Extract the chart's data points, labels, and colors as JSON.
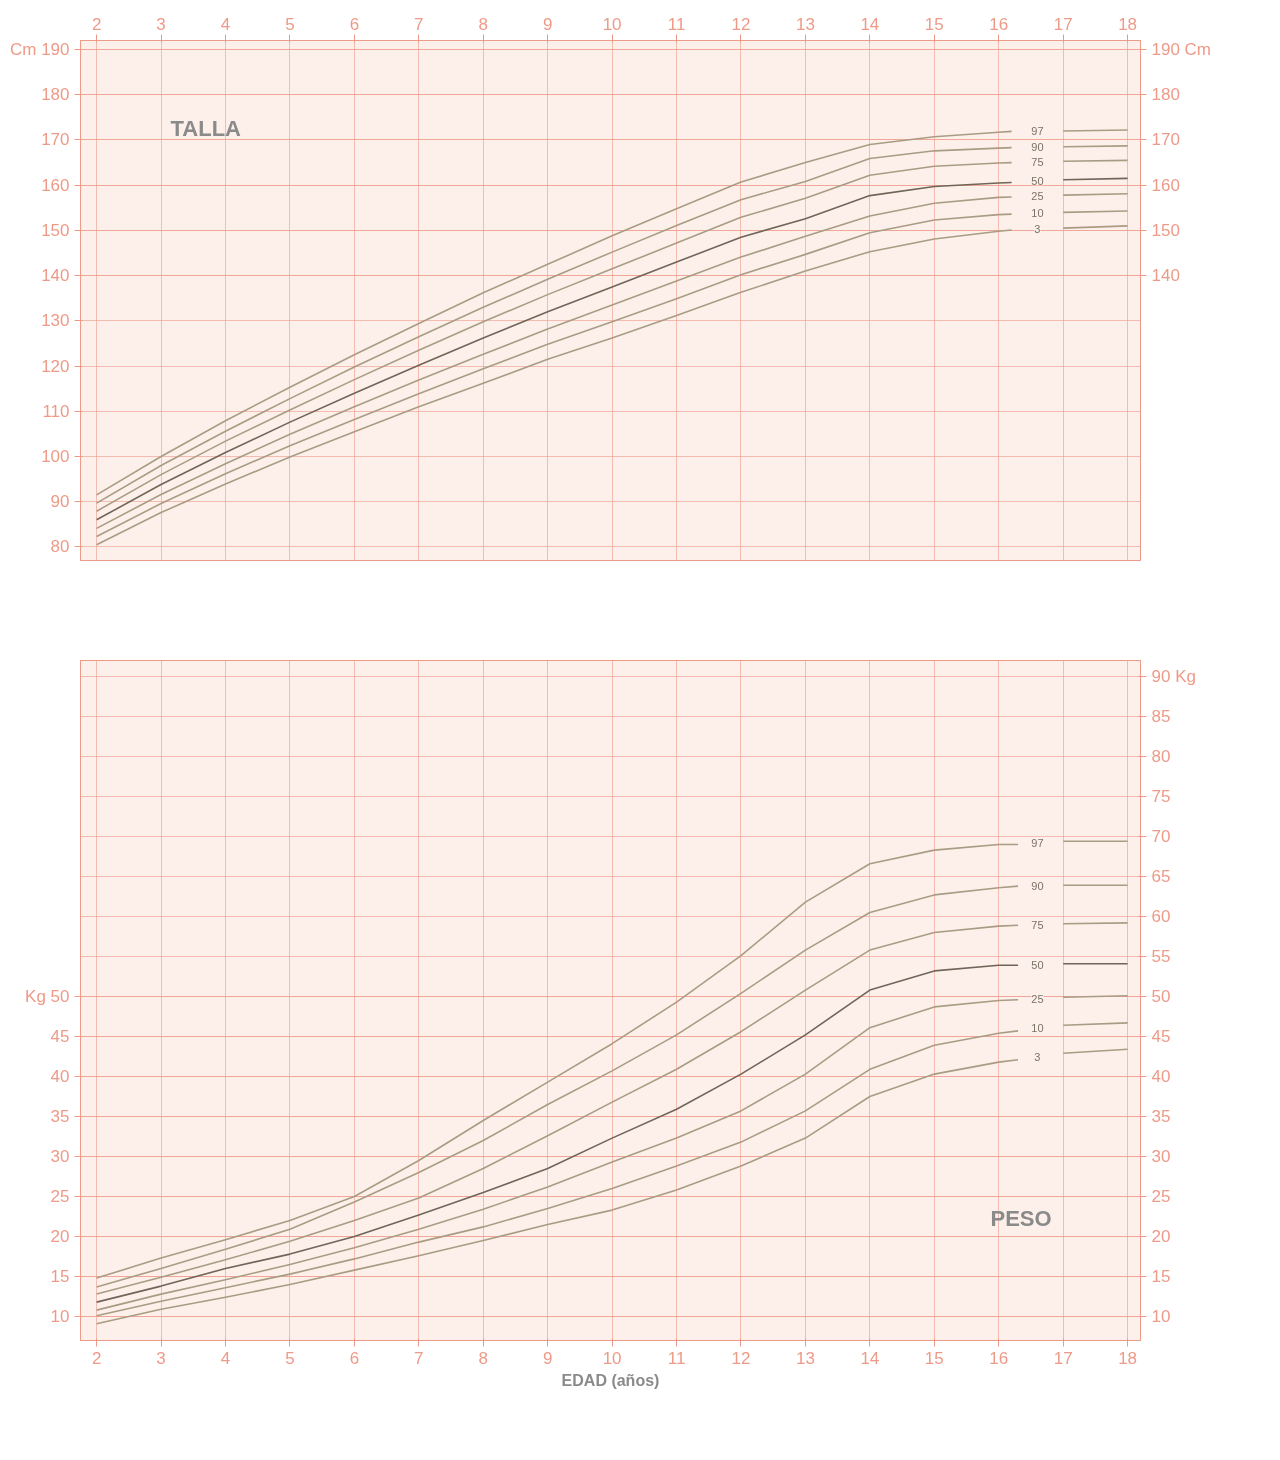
{
  "chart_data": [
    {
      "type": "line",
      "title": "TALLA",
      "grid": true,
      "marker": "none",
      "line_style": "solid",
      "x": [
        2,
        3,
        4,
        5,
        6,
        7,
        8,
        9,
        10,
        11,
        12,
        13,
        14,
        15,
        16,
        16.2,
        16.6,
        17,
        18
      ],
      "xlim": [
        1.75,
        18.2
      ],
      "xticks": [
        2,
        3,
        4,
        5,
        6,
        7,
        8,
        9,
        10,
        11,
        12,
        13,
        14,
        15,
        16,
        17,
        18
      ],
      "ylim": [
        77,
        192
      ],
      "yticks": [
        80,
        90,
        100,
        110,
        120,
        130,
        140,
        150,
        160,
        170,
        180,
        {
          "value": 190,
          "label": "Cm 190"
        }
      ],
      "y2lim": [
        77,
        192
      ],
      "y2ticks": [
        140,
        150,
        160,
        170,
        180,
        {
          "value": 190,
          "label": "190 Cm"
        }
      ],
      "series": [
        {
          "name": "97",
          "color": "#a89c84",
          "values": [
            91.5,
            100.0,
            107.9,
            115.3,
            122.5,
            129.4,
            136.2,
            142.5,
            148.8,
            154.8,
            160.7,
            165.0,
            169.0,
            170.7,
            171.7,
            171.9,
            null,
            172.0,
            172.2
          ]
        },
        {
          "name": "90",
          "color": "#a89c84",
          "values": [
            89.7,
            98.0,
            105.6,
            112.8,
            119.8,
            126.5,
            133.0,
            139.2,
            145.2,
            151.1,
            156.8,
            160.8,
            165.9,
            167.6,
            168.2,
            168.3,
            null,
            168.5,
            168.7
          ]
        },
        {
          "name": "75",
          "color": "#a89c84",
          "values": [
            87.9,
            96.0,
            103.4,
            110.3,
            117.0,
            123.5,
            129.8,
            135.8,
            141.5,
            147.2,
            152.9,
            157.1,
            162.2,
            164.2,
            164.9,
            165.0,
            null,
            165.3,
            165.5
          ]
        },
        {
          "name": "50",
          "color": "#6f6558",
          "values": [
            86.0,
            93.8,
            100.9,
            107.6,
            114.0,
            120.2,
            126.2,
            132.0,
            137.5,
            143.0,
            148.5,
            152.6,
            157.7,
            159.7,
            160.5,
            160.6,
            null,
            161.2,
            161.5
          ]
        },
        {
          "name": "25",
          "color": "#a89c84",
          "values": [
            84.1,
            91.6,
            98.4,
            104.9,
            111.0,
            116.9,
            122.6,
            128.2,
            133.5,
            138.8,
            144.1,
            148.7,
            153.2,
            156.0,
            157.3,
            157.4,
            null,
            157.8,
            158.1
          ]
        },
        {
          "name": "10",
          "color": "#a89c84",
          "values": [
            82.3,
            89.6,
            96.2,
            102.4,
            108.2,
            113.9,
            119.4,
            124.8,
            129.8,
            134.9,
            140.2,
            144.7,
            149.5,
            152.3,
            153.5,
            153.6,
            null,
            154.0,
            154.3
          ]
        },
        {
          "name": "3",
          "color": "#a89c84",
          "values": [
            80.5,
            87.6,
            93.9,
            99.9,
            105.5,
            111.0,
            116.2,
            121.5,
            126.2,
            131.2,
            136.3,
            141.0,
            145.3,
            148.1,
            149.8,
            150.1,
            null,
            150.5,
            151.0
          ]
        }
      ]
    },
    {
      "type": "line",
      "title": "PESO",
      "xlabel": "EDAD (años)",
      "grid": true,
      "marker": "none",
      "line_style": "solid",
      "x": [
        2,
        3,
        4,
        5,
        6,
        7,
        8,
        9,
        10,
        11,
        12,
        13,
        14,
        15,
        16,
        16.3,
        16.6,
        17,
        18
      ],
      "xlim": [
        1.75,
        18.2
      ],
      "xticks": [
        2,
        3,
        4,
        5,
        6,
        7,
        8,
        9,
        10,
        11,
        12,
        13,
        14,
        15,
        16,
        17,
        18
      ],
      "ylim": [
        7,
        92
      ],
      "yticks": [
        10,
        15,
        20,
        25,
        30,
        35,
        40,
        45,
        {
          "value": 50,
          "label": "Kg 50"
        }
      ],
      "y2lim": [
        7,
        92
      ],
      "y2ticks": [
        10,
        15,
        20,
        25,
        30,
        35,
        40,
        45,
        50,
        55,
        60,
        65,
        70,
        75,
        80,
        85,
        {
          "value": 90,
          "label": "90 Kg"
        }
      ],
      "series": [
        {
          "name": "97",
          "color": "#a89c84",
          "values": [
            14.8,
            17.3,
            19.6,
            22.0,
            25.0,
            29.5,
            34.5,
            39.3,
            44.1,
            49.3,
            55.1,
            61.8,
            66.6,
            68.3,
            69.0,
            69.0,
            null,
            69.4,
            69.4
          ]
        },
        {
          "name": "90",
          "color": "#a89c84",
          "values": [
            13.7,
            16.0,
            18.4,
            20.9,
            24.3,
            28.0,
            32.0,
            36.5,
            40.7,
            45.2,
            50.4,
            55.8,
            60.5,
            62.7,
            63.6,
            63.8,
            null,
            63.9,
            63.9
          ]
        },
        {
          "name": "75",
          "color": "#a89c84",
          "values": [
            12.8,
            14.9,
            17.1,
            19.4,
            22.0,
            24.8,
            28.5,
            32.6,
            36.8,
            40.9,
            45.6,
            50.8,
            55.8,
            58.0,
            58.8,
            58.9,
            null,
            59.1,
            59.2
          ]
        },
        {
          "name": "50",
          "color": "#6f6558",
          "values": [
            11.8,
            13.8,
            16.0,
            17.8,
            20.0,
            22.7,
            25.5,
            28.5,
            32.3,
            35.9,
            40.3,
            45.2,
            50.8,
            53.2,
            53.9,
            53.9,
            null,
            54.1,
            54.1
          ]
        },
        {
          "name": "25",
          "color": "#a89c84",
          "values": [
            10.8,
            12.8,
            14.6,
            16.5,
            18.6,
            20.9,
            23.4,
            26.2,
            29.3,
            32.3,
            35.7,
            40.3,
            46.1,
            48.7,
            49.5,
            49.6,
            null,
            49.9,
            50.1
          ]
        },
        {
          "name": "10",
          "color": "#a89c84",
          "values": [
            10.1,
            11.9,
            13.6,
            15.3,
            17.2,
            19.3,
            21.2,
            23.5,
            26.0,
            28.8,
            31.8,
            35.7,
            40.9,
            43.9,
            45.4,
            45.7,
            null,
            46.4,
            46.7
          ]
        },
        {
          "name": "3",
          "color": "#a89c84",
          "values": [
            9.1,
            10.9,
            12.4,
            14.0,
            15.8,
            17.6,
            19.5,
            21.5,
            23.3,
            25.8,
            28.8,
            32.3,
            37.5,
            40.3,
            41.8,
            42.1,
            null,
            42.9,
            43.4
          ]
        }
      ]
    }
  ]
}
